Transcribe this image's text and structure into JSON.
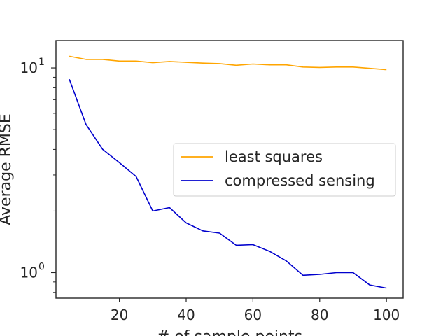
{
  "chart_data": {
    "type": "line",
    "title": "",
    "xlabel": "# of sample points",
    "ylabel": "Average RMSE",
    "yscale": "log",
    "xlim": [
      1,
      105
    ],
    "ylim": [
      0.75,
      13.6
    ],
    "grid": false,
    "legend_position": "right",
    "x_ticks": [
      20,
      40,
      60,
      80,
      100
    ],
    "y_major_ticks": [
      1,
      10
    ],
    "y_minor_ticks": [
      0.8,
      0.9,
      2,
      3,
      4,
      5,
      6,
      7,
      8,
      9
    ],
    "x": [
      5,
      10,
      15,
      20,
      25,
      30,
      35,
      40,
      45,
      50,
      55,
      60,
      65,
      70,
      75,
      80,
      85,
      90,
      95,
      100
    ],
    "series": [
      {
        "name": "least squares",
        "color": "#ffa500",
        "values": [
          11.4,
          11.0,
          11.0,
          10.8,
          10.8,
          10.6,
          10.75,
          10.65,
          10.55,
          10.5,
          10.3,
          10.45,
          10.35,
          10.35,
          10.1,
          10.05,
          10.1,
          10.1,
          9.95,
          9.8
        ]
      },
      {
        "name": "compressed sensing",
        "color": "#0000cd",
        "values": [
          8.8,
          5.3,
          4.0,
          3.45,
          2.95,
          2.0,
          2.08,
          1.75,
          1.6,
          1.56,
          1.36,
          1.37,
          1.27,
          1.14,
          0.97,
          0.98,
          1.0,
          1.0,
          0.87,
          0.84
        ]
      }
    ]
  }
}
